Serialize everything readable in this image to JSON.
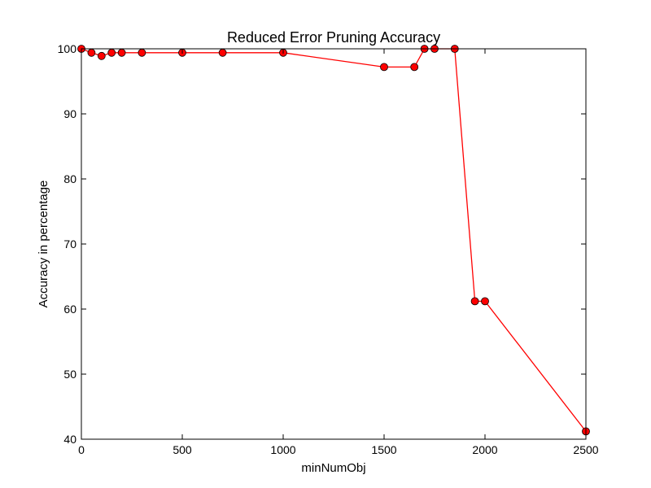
{
  "chart_data": {
    "type": "line",
    "title": "Reduced Error Pruning Accuracy",
    "xlabel": "minNumObj",
    "ylabel": "Accuracy in percentage",
    "xlim": [
      0,
      2500
    ],
    "ylim": [
      40,
      100
    ],
    "xticks": [
      0,
      500,
      1000,
      1500,
      2000,
      2500
    ],
    "yticks": [
      40,
      50,
      60,
      70,
      80,
      90,
      100
    ],
    "grid": false,
    "series": [
      {
        "color": "#ff0000",
        "marker": "circle",
        "points": [
          {
            "x": 0,
            "y": 100
          },
          {
            "x": 50,
            "y": 99.4
          },
          {
            "x": 100,
            "y": 98.9
          },
          {
            "x": 150,
            "y": 99.4
          },
          {
            "x": 200,
            "y": 99.4
          },
          {
            "x": 300,
            "y": 99.4
          },
          {
            "x": 500,
            "y": 99.4
          },
          {
            "x": 700,
            "y": 99.4
          },
          {
            "x": 1000,
            "y": 99.4
          },
          {
            "x": 1500,
            "y": 97.2
          },
          {
            "x": 1650,
            "y": 97.2
          },
          {
            "x": 1700,
            "y": 100
          },
          {
            "x": 1750,
            "y": 100
          },
          {
            "x": 1850,
            "y": 100
          },
          {
            "x": 1950,
            "y": 61.2
          },
          {
            "x": 2000,
            "y": 61.2
          },
          {
            "x": 2500,
            "y": 41.2
          }
        ]
      }
    ]
  }
}
